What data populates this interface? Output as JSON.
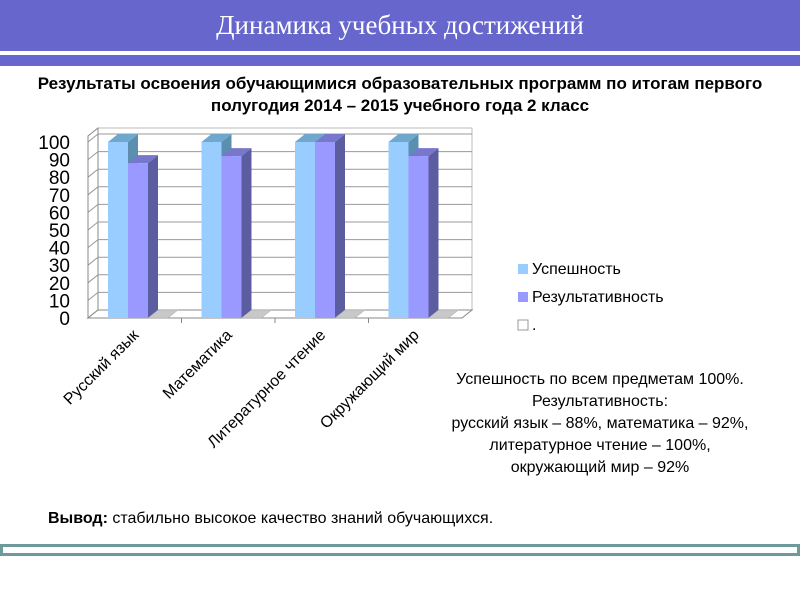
{
  "header": {
    "title": "Динамика учебных достижений"
  },
  "colors": {
    "header": "#6666cc",
    "footer": "#6e9a9a"
  },
  "chart_data": {
    "type": "bar",
    "title": "Результаты освоения обучающимися образовательных программ по итогам первого полугодия 2014 – 2015 учебного года 2 класс",
    "categories": [
      "Русский язык",
      "Математика",
      "Литературное чтение",
      "Окружающий мир"
    ],
    "series": [
      {
        "name": "Успешность",
        "values": [
          100,
          100,
          100,
          100
        ],
        "color": "#99ccff"
      },
      {
        "name": "Результативность",
        "values": [
          88,
          92,
          100,
          92
        ],
        "color": "#9999ff"
      },
      {
        "name": ".",
        "values": [
          0,
          0,
          0,
          0
        ],
        "color": "#ffffff"
      }
    ],
    "ylim": [
      0,
      100
    ],
    "yticks": [
      0,
      10,
      20,
      30,
      40,
      50,
      60,
      70,
      80,
      90,
      100
    ],
    "grid": true,
    "legend": "right",
    "style": "3d-column"
  },
  "note": {
    "lines": [
      "Успешность по всем предметам 100%.",
      "Результативность:",
      "русский язык – 88%, математика – 92%,",
      "литературное чтение – 100%,",
      "окружающий мир – 92%"
    ]
  },
  "conclusion": {
    "label": "Вывод:",
    "text": " стабильно высокое качество знаний обучающихся."
  }
}
